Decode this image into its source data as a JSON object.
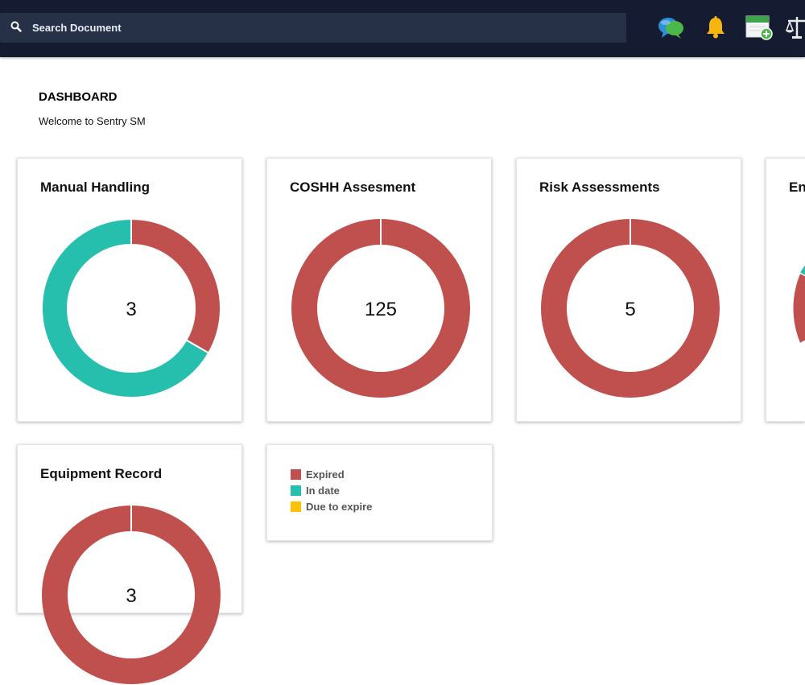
{
  "header": {
    "search": {
      "placeholder": "Search Document"
    },
    "icons": [
      "chat-icon",
      "bell-icon",
      "add-calendar-icon",
      "scales-icon"
    ]
  },
  "page": {
    "title": "DASHBOARD",
    "subtitle": "Welcome to Sentry SM"
  },
  "colors": {
    "expired": "#c0504d",
    "in_date": "#26bfad",
    "due_to_expire": "#ffc000",
    "topbar": "#151c31"
  },
  "chart_data": [
    {
      "type": "pie",
      "title": "Manual Handling",
      "center_label": "3",
      "labels": [
        "Expired",
        "In date"
      ],
      "values": [
        1,
        2
      ]
    },
    {
      "type": "pie",
      "title": "COSHH Assesment",
      "center_label": "125",
      "labels": [
        "Expired"
      ],
      "values": [
        125
      ]
    },
    {
      "type": "pie",
      "title": "Risk Assessments",
      "center_label": "5",
      "labels": [
        "Expired"
      ],
      "values": [
        5
      ]
    },
    {
      "type": "pie",
      "title": "En",
      "center_label": "",
      "labels": [
        "Expired",
        "In date"
      ],
      "values": [
        null,
        null
      ]
    },
    {
      "type": "pie",
      "title": "Equipment Record",
      "center_label": "3",
      "labels": [
        "Expired"
      ],
      "values": [
        3
      ]
    }
  ],
  "legend": [
    {
      "label": "Expired",
      "color": "#c0504d"
    },
    {
      "label": "In date",
      "color": "#26bfad"
    },
    {
      "label": "Due to expire",
      "color": "#ffc000"
    }
  ]
}
